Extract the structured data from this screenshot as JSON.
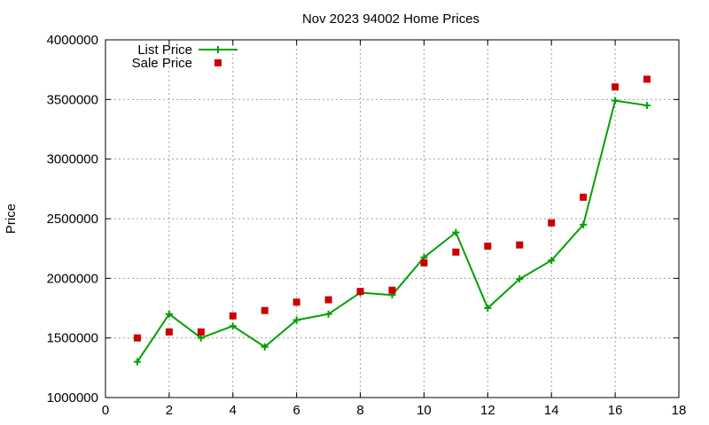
{
  "chart_data": {
    "type": "line",
    "title": "Nov 2023 94002 Home Prices",
    "xlabel": "",
    "ylabel": "Price",
    "xlim": [
      0,
      18
    ],
    "ylim": [
      1000000,
      4000000
    ],
    "xticks": [
      0,
      2,
      4,
      6,
      8,
      10,
      12,
      14,
      16,
      18
    ],
    "yticks": [
      1000000,
      1500000,
      2000000,
      2500000,
      3000000,
      3500000,
      4000000
    ],
    "grid": true,
    "legend_position": "top-left",
    "series": [
      {
        "name": "List Price",
        "style": "line-with-plus-markers",
        "color": "#00a000",
        "x": [
          1,
          2,
          3,
          4,
          5,
          6,
          7,
          8,
          9,
          10,
          11,
          12,
          13,
          14,
          15,
          16,
          17
        ],
        "y": [
          1300000,
          1700000,
          1500000,
          1600000,
          1425000,
          1650000,
          1700000,
          1880000,
          1860000,
          2175000,
          2385000,
          1750000,
          1995000,
          2150000,
          2450000,
          3490000,
          3450000
        ]
      },
      {
        "name": "Sale Price",
        "style": "square-markers",
        "color": "#cc0000",
        "x": [
          1,
          2,
          3,
          4,
          5,
          6,
          7,
          8,
          9,
          10,
          11,
          12,
          13,
          14,
          15,
          16,
          17
        ],
        "y": [
          1500000,
          1550000,
          1550000,
          1685000,
          1730000,
          1800000,
          1820000,
          1890000,
          1900000,
          2130000,
          2220000,
          2270000,
          2280000,
          2465000,
          2680000,
          3605000,
          3670000
        ]
      }
    ]
  }
}
